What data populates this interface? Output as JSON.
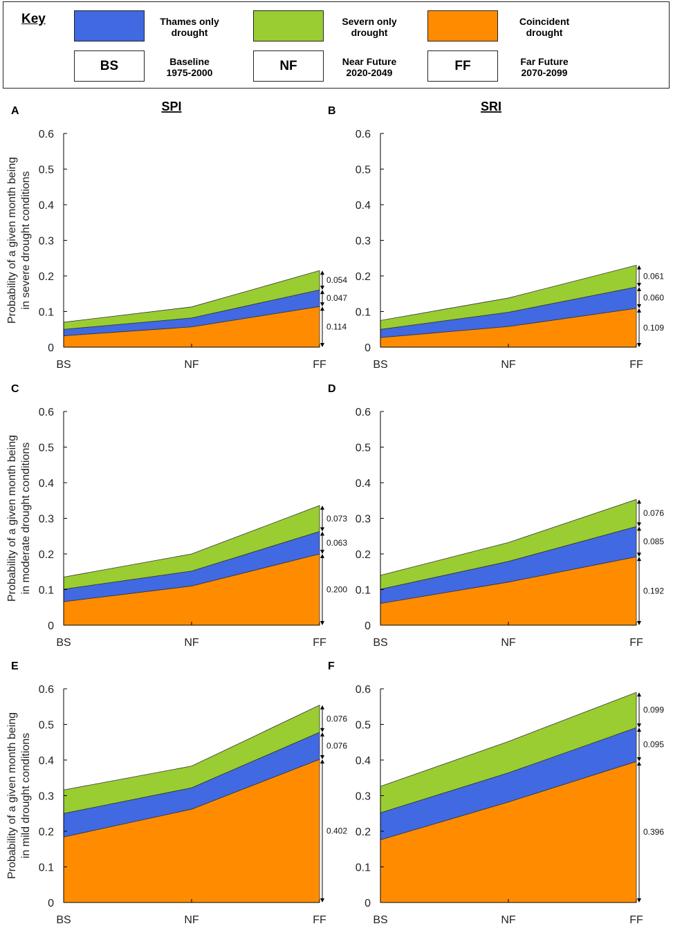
{
  "key": {
    "title": "Key",
    "entries": [
      {
        "label_line1": "Thames only",
        "label_line2": "drought",
        "color": "#4169E1"
      },
      {
        "label_line1": "Severn only",
        "label_line2": "drought",
        "color": "#9ACD32"
      },
      {
        "label_line1": "Coincident",
        "label_line2": "drought",
        "color": "#FF8C00"
      }
    ],
    "periods": [
      {
        "abbr": "BS",
        "label_line1": "Baseline",
        "label_line2": "1975-2000"
      },
      {
        "abbr": "NF",
        "label_line1": "Near Future",
        "label_line2": "2020-2049"
      },
      {
        "abbr": "FF",
        "label_line1": "Far Future",
        "label_line2": "2070-2099"
      }
    ]
  },
  "column_titles": [
    "SPI",
    "SRI"
  ],
  "ylabels": [
    [
      "Probability of a given month being",
      "in severe drought conditions"
    ],
    [
      "Probability of a given month being",
      "in moderate drought conditions"
    ],
    [
      "Probability of a given month being",
      "in mild drought conditions"
    ]
  ],
  "chart_data": [
    {
      "type": "area",
      "panel": "A",
      "index": "SPI",
      "severity": "severe",
      "categories": [
        "BS",
        "NF",
        "FF"
      ],
      "ylim": [
        0,
        0.6
      ],
      "yticks": [
        0,
        0.1,
        0.2,
        0.3,
        0.4,
        0.5,
        0.6
      ],
      "series": [
        {
          "name": "Coincident drought",
          "values": [
            0.032,
            0.057,
            0.114
          ]
        },
        {
          "name": "Thames only drought",
          "values": [
            0.018,
            0.025,
            0.047
          ]
        },
        {
          "name": "Severn only drought",
          "values": [
            0.02,
            0.031,
            0.054
          ]
        }
      ],
      "annotations": [
        "0.114",
        "0.047",
        "0.054"
      ]
    },
    {
      "type": "area",
      "panel": "B",
      "index": "SRI",
      "severity": "severe",
      "categories": [
        "BS",
        "NF",
        "FF"
      ],
      "ylim": [
        0,
        0.6
      ],
      "yticks": [
        0,
        0.1,
        0.2,
        0.3,
        0.4,
        0.5,
        0.6
      ],
      "series": [
        {
          "name": "Coincident drought",
          "values": [
            0.027,
            0.058,
            0.109
          ]
        },
        {
          "name": "Thames only drought",
          "values": [
            0.023,
            0.04,
            0.06
          ]
        },
        {
          "name": "Severn only drought",
          "values": [
            0.025,
            0.04,
            0.061
          ]
        }
      ],
      "annotations": [
        "0.109",
        "0.060",
        "0.061"
      ]
    },
    {
      "type": "area",
      "panel": "C",
      "index": "SPI",
      "severity": "moderate",
      "categories": [
        "BS",
        "NF",
        "FF"
      ],
      "ylim": [
        0,
        0.6
      ],
      "yticks": [
        0,
        0.1,
        0.2,
        0.3,
        0.4,
        0.5,
        0.6
      ],
      "series": [
        {
          "name": "Coincident drought",
          "values": [
            0.066,
            0.11,
            0.2
          ]
        },
        {
          "name": "Thames only drought",
          "values": [
            0.035,
            0.042,
            0.063
          ]
        },
        {
          "name": "Severn only drought",
          "values": [
            0.034,
            0.048,
            0.073
          ]
        }
      ],
      "annotations": [
        "0.200",
        "0.063",
        "0.073"
      ]
    },
    {
      "type": "area",
      "panel": "D",
      "index": "SRI",
      "severity": "moderate",
      "categories": [
        "BS",
        "NF",
        "FF"
      ],
      "ylim": [
        0,
        0.6
      ],
      "yticks": [
        0,
        0.1,
        0.2,
        0.3,
        0.4,
        0.5,
        0.6
      ],
      "series": [
        {
          "name": "Coincident drought",
          "values": [
            0.061,
            0.121,
            0.192
          ]
        },
        {
          "name": "Thames only drought",
          "values": [
            0.04,
            0.058,
            0.085
          ]
        },
        {
          "name": "Severn only drought",
          "values": [
            0.039,
            0.053,
            0.076
          ]
        }
      ],
      "annotations": [
        "0.192",
        "0.085",
        "0.076"
      ]
    },
    {
      "type": "area",
      "panel": "E",
      "index": "SPI",
      "severity": "mild",
      "categories": [
        "BS",
        "NF",
        "FF"
      ],
      "ylim": [
        0,
        0.6
      ],
      "yticks": [
        0,
        0.1,
        0.2,
        0.3,
        0.4,
        0.5,
        0.6
      ],
      "series": [
        {
          "name": "Coincident drought",
          "values": [
            0.184,
            0.262,
            0.402
          ]
        },
        {
          "name": "Thames only drought",
          "values": [
            0.066,
            0.06,
            0.076
          ]
        },
        {
          "name": "Severn only drought",
          "values": [
            0.066,
            0.061,
            0.076
          ]
        }
      ],
      "annotations": [
        "0.402",
        "0.076",
        "0.076"
      ]
    },
    {
      "type": "area",
      "panel": "F",
      "index": "SRI",
      "severity": "mild",
      "categories": [
        "BS",
        "NF",
        "FF"
      ],
      "ylim": [
        0,
        0.6
      ],
      "yticks": [
        0,
        0.1,
        0.2,
        0.3,
        0.4,
        0.5,
        0.6
      ],
      "series": [
        {
          "name": "Coincident drought",
          "values": [
            0.176,
            0.282,
            0.396
          ]
        },
        {
          "name": "Thames only drought",
          "values": [
            0.076,
            0.082,
            0.095
          ]
        },
        {
          "name": "Severn only drought",
          "values": [
            0.074,
            0.088,
            0.099
          ]
        }
      ],
      "annotations": [
        "0.396",
        "0.095",
        "0.099"
      ]
    }
  ]
}
